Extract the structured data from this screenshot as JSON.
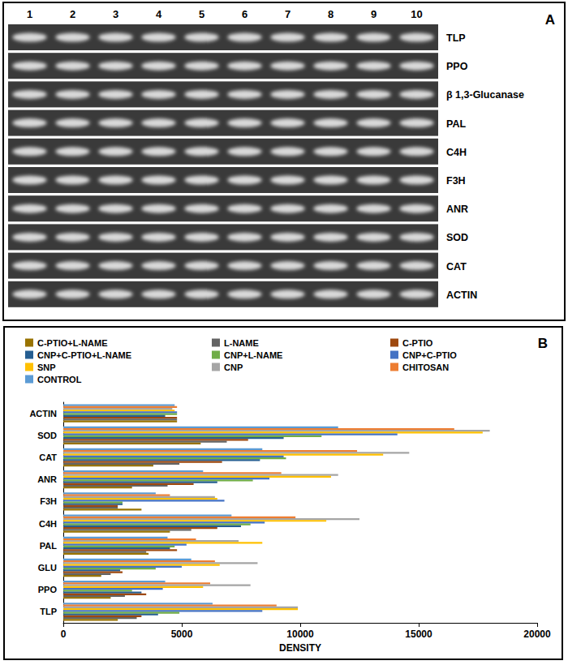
{
  "gel": {
    "panel_label": "A",
    "lanes": [
      "1",
      "2",
      "3",
      "4",
      "5",
      "6",
      "7",
      "8",
      "9",
      "10"
    ],
    "rows": [
      "TLP",
      "PPO",
      "β 1,3-Glucanase",
      "PAL",
      "C4H",
      "F3H",
      "ANR",
      "SOD",
      "CAT",
      "ACTIN"
    ]
  },
  "chart_data": {
    "type": "bar",
    "orientation": "horizontal",
    "annotations": [
      "B"
    ],
    "x_label": "DENSITY",
    "categories": [
      "TLP",
      "PPO",
      "GLU",
      "PAL",
      "C4H",
      "F3H",
      "ANR",
      "CAT",
      "SOD",
      "ACTIN"
    ],
    "xlim": [
      0,
      20000
    ],
    "xticks": [
      0,
      5000,
      10000,
      15000,
      20000
    ],
    "grid": false,
    "legend": "top",
    "series": [
      {
        "name": "CONTROL",
        "color": "#5b9bd5",
        "values": [
          6300,
          4300,
          5400,
          4400,
          7100,
          3900,
          5900,
          8400,
          11600,
          4700
        ]
      },
      {
        "name": "CHITOSAN",
        "color": "#ed7d31",
        "values": [
          9000,
          6200,
          6400,
          5600,
          9800,
          4500,
          9200,
          12400,
          16500,
          4800
        ]
      },
      {
        "name": "CNP",
        "color": "#a5a5a5",
        "values": [
          9900,
          7900,
          8200,
          7400,
          12500,
          6400,
          11600,
          14600,
          18000,
          4600
        ]
      },
      {
        "name": "SNP",
        "color": "#ffc000",
        "values": [
          9900,
          5900,
          6600,
          8400,
          11100,
          6500,
          11300,
          13500,
          17700,
          4700
        ]
      },
      {
        "name": "CNP+C-PTIO",
        "color": "#4472c4",
        "values": [
          8400,
          4200,
          5000,
          5200,
          8500,
          6800,
          8700,
          9300,
          14100,
          4800
        ]
      },
      {
        "name": "CNP+L-NAME",
        "color": "#70ad47",
        "values": [
          4900,
          2900,
          3900,
          4700,
          7900,
          2500,
          8000,
          9400,
          10900,
          4800
        ]
      },
      {
        "name": "CNP+C-PTIO+L-NAME",
        "color": "#255e91",
        "values": [
          4000,
          3300,
          2400,
          4500,
          7500,
          2500,
          6500,
          8300,
          9300,
          4300
        ]
      },
      {
        "name": "C-PTIO",
        "color": "#9e480e",
        "values": [
          3300,
          3500,
          2500,
          4800,
          6500,
          2300,
          5500,
          6700,
          7800,
          4800
        ]
      },
      {
        "name": "L-NAME",
        "color": "#636363",
        "values": [
          3100,
          2600,
          2000,
          3500,
          5400,
          2300,
          4400,
          4900,
          6900,
          4800
        ]
      },
      {
        "name": "C-PTIO+L-NAME",
        "color": "#997300",
        "values": [
          2300,
          2000,
          1600,
          3600,
          4500,
          3300,
          2900,
          3800,
          5800,
          4800
        ]
      }
    ]
  }
}
